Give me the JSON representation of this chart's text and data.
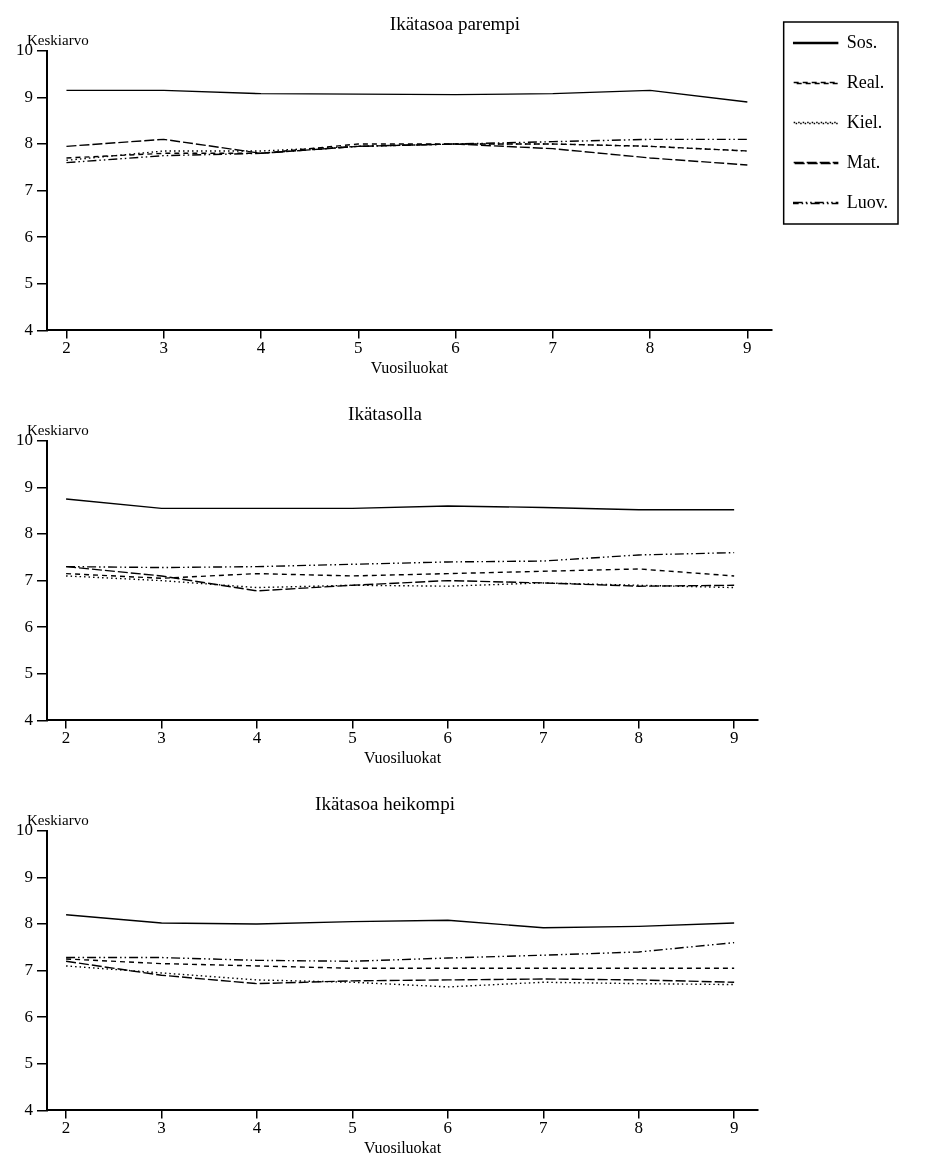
{
  "chart_data": [
    {
      "type": "line",
      "title": "Ikätasoa parempi",
      "ylabel": "Keskiarvo",
      "xlabel": "Vuosiluokat",
      "x": [
        2,
        3,
        4,
        5,
        6,
        7,
        8,
        9
      ],
      "xlim": [
        1.8,
        9.25
      ],
      "xticks": [
        2,
        3,
        4,
        5,
        6,
        7,
        8,
        9
      ],
      "ylim": [
        4,
        10
      ],
      "yticks": [
        4,
        5,
        6,
        7,
        8,
        9,
        10
      ],
      "grid": false,
      "legend": "right",
      "marker": "none",
      "series": [
        {
          "name": "Sos.",
          "color": "#000000",
          "line_style": "solid",
          "values": [
            9.15,
            9.15,
            9.08,
            9.07,
            9.06,
            9.08,
            9.15,
            8.9
          ]
        },
        {
          "name": "Real.",
          "color": "#000000",
          "line_style": "dashed",
          "values": [
            7.7,
            7.8,
            7.8,
            8.0,
            8.0,
            8.0,
            7.95,
            7.85
          ]
        },
        {
          "name": "Kiel.",
          "color": "#000000",
          "line_style": "dotted",
          "values": [
            7.65,
            7.85,
            7.85,
            7.95,
            8.0,
            8.0,
            7.95,
            7.85
          ]
        },
        {
          "name": "Mat.",
          "color": "#000000",
          "line_style": "longdashed",
          "values": [
            7.95,
            8.1,
            7.8,
            7.95,
            8.0,
            7.9,
            7.7,
            7.55
          ]
        },
        {
          "name": "Luov.",
          "color": "#000000",
          "line_style": "dashdotdot",
          "values": [
            7.6,
            7.75,
            7.8,
            7.95,
            8.0,
            8.05,
            8.1,
            8.1
          ]
        }
      ]
    },
    {
      "type": "line",
      "title": "Ikätasolla",
      "ylabel": "Keskiarvo",
      "xlabel": "Vuosiluokat",
      "x": [
        2,
        3,
        4,
        5,
        6,
        7,
        8,
        9
      ],
      "xlim": [
        1.8,
        9.25
      ],
      "xticks": [
        2,
        3,
        4,
        5,
        6,
        7,
        8,
        9
      ],
      "ylim": [
        4,
        10
      ],
      "yticks": [
        4,
        5,
        6,
        7,
        8,
        9,
        10
      ],
      "grid": false,
      "marker": "none",
      "series": [
        {
          "color": "#000000",
          "line_style": "solid",
          "values": [
            8.75,
            8.55,
            8.55,
            8.55,
            8.6,
            8.57,
            8.52,
            8.52
          ]
        },
        {
          "color": "#000000",
          "line_style": "dashed",
          "values": [
            7.15,
            7.05,
            7.15,
            7.1,
            7.15,
            7.2,
            7.25,
            7.1
          ]
        },
        {
          "color": "#000000",
          "line_style": "dotted",
          "values": [
            7.1,
            7.0,
            6.85,
            6.9,
            6.88,
            6.95,
            6.9,
            6.85
          ]
        },
        {
          "color": "#000000",
          "line_style": "longdashed",
          "values": [
            7.3,
            7.1,
            6.78,
            6.9,
            7.0,
            6.95,
            6.88,
            6.9
          ]
        },
        {
          "color": "#000000",
          "line_style": "dashdotdot",
          "values": [
            7.3,
            7.28,
            7.3,
            7.35,
            7.4,
            7.42,
            7.55,
            7.6
          ]
        }
      ]
    },
    {
      "type": "line",
      "title": "Ikätasoa heikompi",
      "ylabel": "Keskiarvo",
      "xlabel": "Vuosiluokat",
      "x": [
        2,
        3,
        4,
        5,
        6,
        7,
        8,
        9
      ],
      "xlim": [
        1.8,
        9.25
      ],
      "xticks": [
        2,
        3,
        4,
        5,
        6,
        7,
        8,
        9
      ],
      "ylim": [
        4,
        10
      ],
      "yticks": [
        4,
        5,
        6,
        7,
        8,
        9,
        10
      ],
      "grid": false,
      "marker": "none",
      "series": [
        {
          "color": "#000000",
          "line_style": "solid",
          "values": [
            8.2,
            8.02,
            8.0,
            8.05,
            8.08,
            7.92,
            7.95,
            8.02
          ]
        },
        {
          "color": "#000000",
          "line_style": "dashed",
          "values": [
            7.25,
            7.15,
            7.1,
            7.05,
            7.05,
            7.05,
            7.05,
            7.05
          ]
        },
        {
          "color": "#000000",
          "line_style": "dotted",
          "values": [
            7.1,
            6.95,
            6.8,
            6.75,
            6.65,
            6.75,
            6.72,
            6.7
          ]
        },
        {
          "color": "#000000",
          "line_style": "longdashed",
          "values": [
            7.2,
            6.9,
            6.72,
            6.78,
            6.8,
            6.82,
            6.8,
            6.75
          ]
        },
        {
          "color": "#000000",
          "line_style": "dashdotdot",
          "values": [
            7.28,
            7.28,
            7.22,
            7.2,
            7.27,
            7.33,
            7.4,
            7.6
          ]
        }
      ]
    }
  ]
}
